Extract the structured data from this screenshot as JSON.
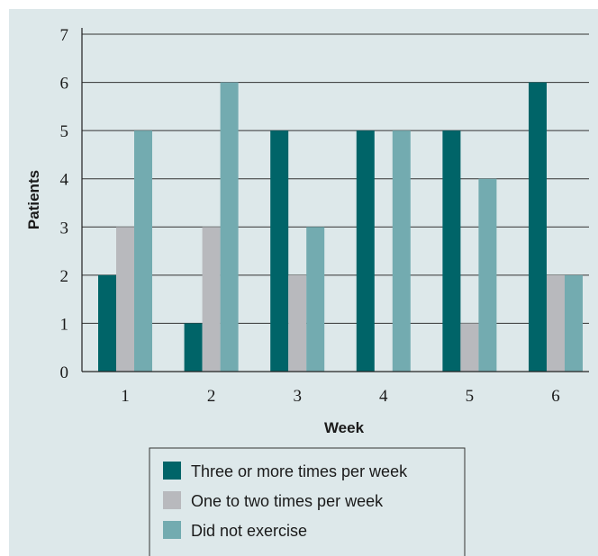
{
  "chart_data": {
    "type": "bar",
    "categories": [
      "1",
      "2",
      "3",
      "4",
      "5",
      "6"
    ],
    "series": [
      {
        "name": "Three or more times per week",
        "values": [
          2,
          1,
          5,
          5,
          5,
          6
        ],
        "color": "#006468"
      },
      {
        "name": "One to two times per week",
        "values": [
          3,
          3,
          2,
          0,
          1,
          2
        ],
        "color": "#b8b9bd"
      },
      {
        "name": "Did not exercise",
        "values": [
          5,
          6,
          3,
          5,
          4,
          2
        ],
        "color": "#73abb0"
      }
    ],
    "xlabel": "Week",
    "ylabel": "Patients",
    "ylim": [
      0,
      7
    ],
    "yticks": [
      "0",
      "1",
      "2",
      "3",
      "4",
      "5",
      "6",
      "7"
    ],
    "grid": "horizontal",
    "legend_position": "bottom"
  }
}
